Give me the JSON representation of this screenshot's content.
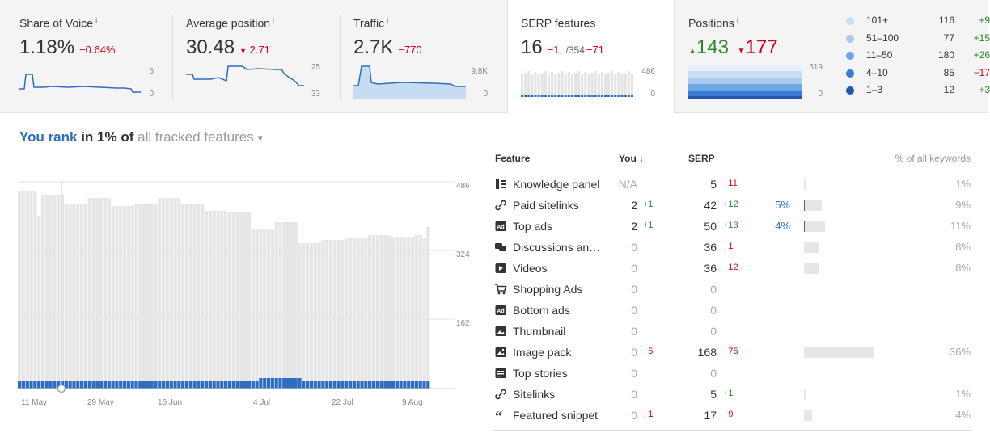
{
  "cards": {
    "sov": {
      "label": "Share of Voice",
      "info": "i",
      "value": "1.18%",
      "delta": "−0.64%",
      "axis_top": "6",
      "axis_bottom": "0"
    },
    "avgpos": {
      "label": "Average position",
      "info": "i",
      "value": "30.48",
      "delta": "2.71",
      "axis_top": "25",
      "axis_bottom": "33"
    },
    "traffic": {
      "label": "Traffic",
      "info": "i",
      "value": "2.7K",
      "delta": "−770",
      "axis_top": "9.8K",
      "axis_bottom": "0"
    },
    "serp": {
      "label": "SERP features",
      "info": "i",
      "value": "16",
      "delta": "−1",
      "sub": "/354",
      "sub_delta": "−71",
      "axis_top": "486",
      "axis_bottom": "0"
    },
    "positions": {
      "label": "Positions",
      "info": "i",
      "up": "143",
      "down": "177",
      "axis_top": "519",
      "axis_bottom": "0"
    }
  },
  "legend": [
    {
      "name": "101+",
      "value": "116",
      "change": "+9",
      "color": "#c9def5"
    },
    {
      "name": "51–100",
      "value": "77",
      "change": "+15",
      "color": "#a9c9ee"
    },
    {
      "name": "11–50",
      "value": "180",
      "change": "+26",
      "color": "#6fa6e4"
    },
    {
      "name": "4–10",
      "value": "85",
      "change": "−17",
      "color": "#3a7bd5"
    },
    {
      "name": "1–3",
      "value": "12",
      "change": "+3",
      "color": "#2458b0"
    }
  ],
  "heading": {
    "p1": "You rank",
    "p2": " in 1% of ",
    "p3": "all tracked features",
    "caret": "▾"
  },
  "main_chart": {
    "y_ticks": [
      "486",
      "324",
      "162"
    ],
    "x_ticks": [
      "11 May",
      "29 May",
      "16 Jun",
      "4 Jul",
      "22 Jul",
      "9 Aug"
    ]
  },
  "table": {
    "headers": {
      "feature": "Feature",
      "you": "You",
      "sort": "↓",
      "serp": "SERP",
      "pct": "% of all keywords"
    },
    "rows": [
      {
        "icon": "knowledge-panel-icon",
        "feature": "Knowledge panel",
        "you": "N/A",
        "you_delta": "",
        "serp": "5",
        "serp_delta": "−11",
        "you_pct": "",
        "pct": "1%",
        "share": 0.01,
        "you_share": 0
      },
      {
        "icon": "link-icon",
        "feature": "Paid sitelinks",
        "you": "2",
        "you_delta": "+1",
        "serp": "42",
        "serp_delta": "+12",
        "you_pct": "5%",
        "pct": "9%",
        "share": 0.09,
        "you_share": 0.05
      },
      {
        "icon": "ad-icon",
        "feature": "Top ads",
        "you": "2",
        "you_delta": "+1",
        "serp": "50",
        "serp_delta": "+13",
        "you_pct": "4%",
        "pct": "11%",
        "share": 0.11,
        "you_share": 0.04
      },
      {
        "icon": "discussions-icon",
        "feature": "Discussions an…",
        "you": "0",
        "you_delta": "",
        "serp": "36",
        "serp_delta": "−1",
        "you_pct": "",
        "pct": "8%",
        "share": 0.08,
        "you_share": 0
      },
      {
        "icon": "video-icon",
        "feature": "Videos",
        "you": "0",
        "you_delta": "",
        "serp": "36",
        "serp_delta": "−12",
        "you_pct": "",
        "pct": "8%",
        "share": 0.08,
        "you_share": 0
      },
      {
        "icon": "cart-icon",
        "feature": "Shopping Ads",
        "you": "0",
        "you_delta": "",
        "serp": "0",
        "serp_delta": "",
        "you_pct": "",
        "pct": "",
        "share": 0,
        "you_share": 0
      },
      {
        "icon": "ad-icon",
        "feature": "Bottom ads",
        "you": "0",
        "you_delta": "",
        "serp": "0",
        "serp_delta": "",
        "you_pct": "",
        "pct": "",
        "share": 0,
        "you_share": 0
      },
      {
        "icon": "image-icon",
        "feature": "Thumbnail",
        "you": "0",
        "you_delta": "",
        "serp": "0",
        "serp_delta": "",
        "you_pct": "",
        "pct": "",
        "share": 0,
        "you_share": 0
      },
      {
        "icon": "image-pack-icon",
        "feature": "Image pack",
        "you": "0",
        "you_delta": "−5",
        "serp": "168",
        "serp_delta": "−75",
        "you_pct": "",
        "pct": "36%",
        "share": 0.36,
        "you_share": 0
      },
      {
        "icon": "news-icon",
        "feature": "Top stories",
        "you": "0",
        "you_delta": "",
        "serp": "0",
        "serp_delta": "",
        "you_pct": "",
        "pct": "",
        "share": 0,
        "you_share": 0
      },
      {
        "icon": "link-icon",
        "feature": "Sitelinks",
        "you": "0",
        "you_delta": "",
        "serp": "5",
        "serp_delta": "+1",
        "you_pct": "",
        "pct": "1%",
        "share": 0.01,
        "you_share": 0
      },
      {
        "icon": "quote-icon",
        "feature": "Featured snippet",
        "you": "0",
        "you_delta": "−1",
        "serp": "17",
        "serp_delta": "−9",
        "you_pct": "",
        "pct": "4%",
        "share": 0.04,
        "you_share": 0
      }
    ]
  }
}
